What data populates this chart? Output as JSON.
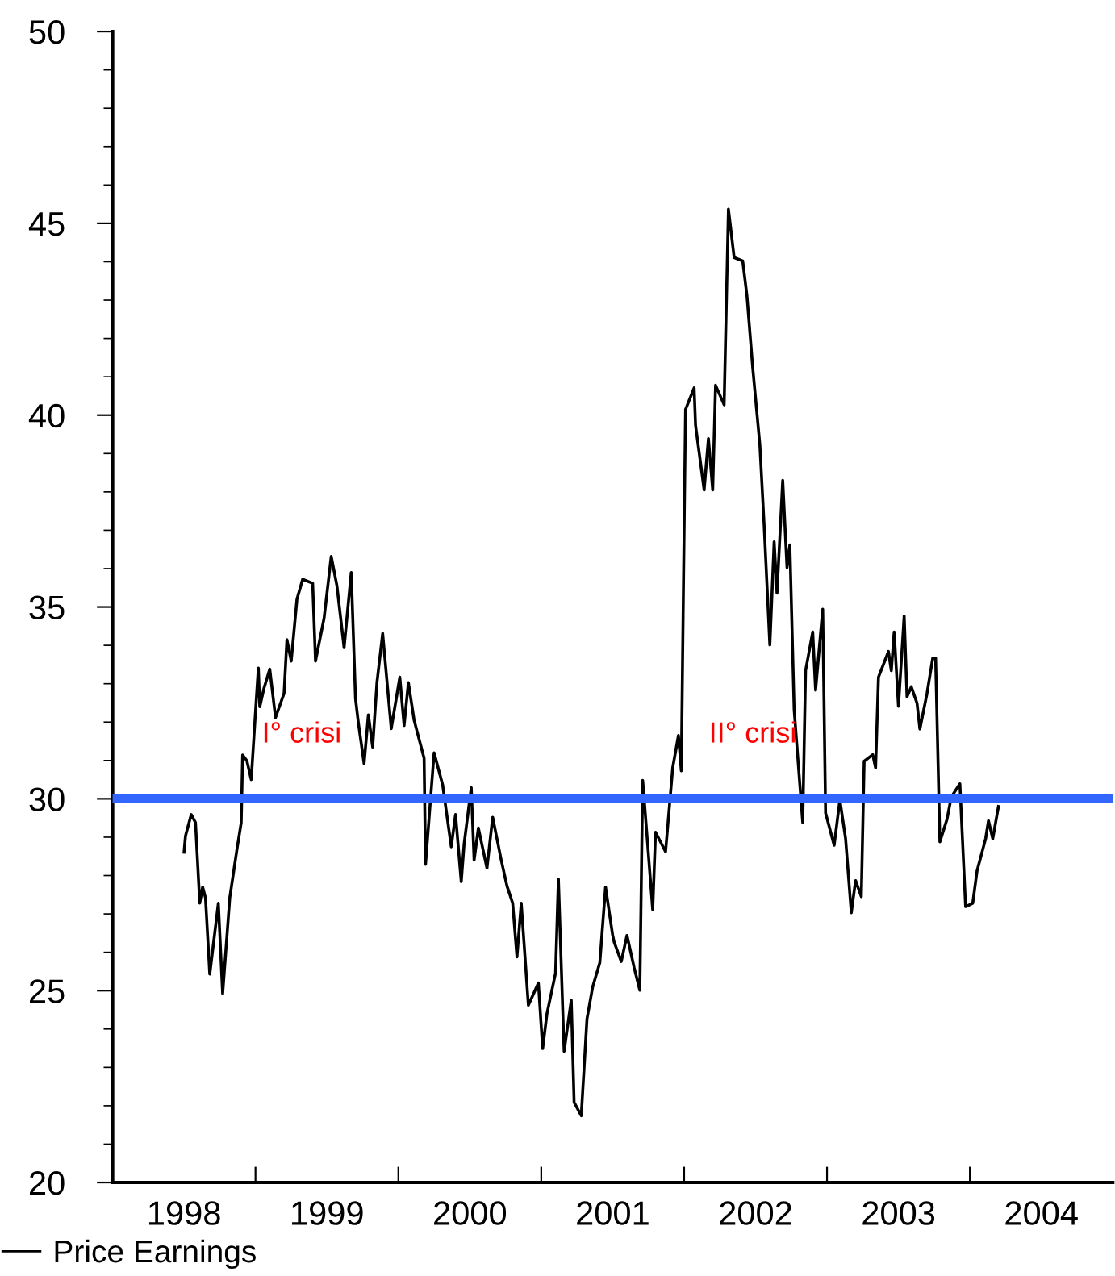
{
  "chart_data": {
    "type": "line",
    "x": [
      1998.5,
      1998.51,
      1998.55,
      1998.58,
      1998.61,
      1998.63,
      1998.65,
      1998.68,
      1998.74,
      1998.77,
      1998.82,
      1998.87,
      1998.9,
      1998.91,
      1998.94,
      1998.97,
      1999.0,
      1999.02,
      1999.03,
      1999.06,
      1999.1,
      1999.14,
      1999.2,
      1999.22,
      1999.25,
      1999.29,
      1999.33,
      1999.4,
      1999.42,
      1999.48,
      1999.53,
      1999.57,
      1999.62,
      1999.67,
      1999.7,
      1999.72,
      1999.76,
      1999.79,
      1999.82,
      1999.85,
      1999.89,
      1999.95,
      2000.01,
      2000.04,
      2000.07,
      2000.11,
      2000.18,
      2000.19,
      2000.25,
      2000.31,
      2000.37,
      2000.4,
      2000.44,
      2000.46,
      2000.51,
      2000.53,
      2000.56,
      2000.62,
      2000.66,
      2000.72,
      2000.76,
      2000.8,
      2000.83,
      2000.86,
      2000.91,
      2000.98,
      2001.01,
      2001.04,
      2001.1,
      2001.12,
      2001.16,
      2001.21,
      2001.23,
      2001.28,
      2001.32,
      2001.36,
      2001.41,
      2001.45,
      2001.5,
      2001.51,
      2001.56,
      2001.6,
      2001.65,
      2001.69,
      2001.71,
      2001.78,
      2001.8,
      2001.87,
      2001.92,
      2001.96,
      2001.98,
      2002.01,
      2002.07,
      2002.08,
      2002.14,
      2002.17,
      2002.2,
      2002.22,
      2002.28,
      2002.31,
      2002.35,
      2002.41,
      2002.44,
      2002.48,
      2002.53,
      2002.56,
      2002.6,
      2002.63,
      2002.65,
      2002.69,
      2002.72,
      2002.74,
      2002.77,
      2002.83,
      2002.85,
      2002.9,
      2002.92,
      2002.97,
      2002.99,
      2003.05,
      2003.09,
      2003.13,
      2003.17,
      2003.2,
      2003.24,
      2003.26,
      2003.32,
      2003.34,
      2003.36,
      2003.43,
      2003.45,
      2003.47,
      2003.5,
      2003.54,
      2003.56,
      2003.59,
      2003.63,
      2003.65,
      2003.7,
      2003.74,
      2003.76,
      2003.79,
      2003.84,
      2003.87,
      2003.93,
      2003.97,
      2004.02,
      2004.05,
      2004.11,
      2004.13,
      2004.16,
      2004.2
    ],
    "series": [
      {
        "name": "Price Earnings",
        "color": "#000000",
        "values": [
          28.61,
          29.03,
          29.59,
          29.38,
          27.28,
          27.7,
          27.42,
          25.43,
          27.28,
          24.92,
          27.42,
          28.68,
          29.38,
          31.14,
          30.99,
          30.5,
          32.26,
          33.41,
          32.4,
          32.89,
          33.38,
          32.12,
          32.75,
          34.15,
          33.59,
          35.2,
          35.72,
          35.62,
          33.59,
          34.71,
          36.32,
          35.55,
          33.94,
          35.9,
          32.61,
          31.98,
          30.92,
          32.19,
          31.35,
          33.03,
          34.31,
          31.83,
          33.17,
          31.91,
          33.03,
          32.05,
          31.06,
          28.29,
          31.2,
          30.36,
          28.75,
          29.59,
          27.84,
          28.82,
          30.29,
          28.4,
          29.24,
          28.19,
          29.52,
          28.4,
          27.73,
          27.28,
          25.88,
          27.28,
          24.62,
          25.2,
          23.49,
          24.4,
          25.46,
          27.91,
          23.42,
          24.75,
          22.09,
          21.74,
          24.26,
          25.1,
          25.73,
          27.7,
          26.44,
          26.27,
          25.76,
          26.44,
          25.6,
          25.01,
          30.48,
          27.11,
          29.13,
          28.62,
          30.81,
          31.65,
          30.73,
          40.15,
          40.71,
          39.73,
          38.05,
          39.39,
          38.05,
          40.78,
          40.27,
          45.37,
          44.11,
          44.02,
          43.1,
          41.24,
          39.23,
          37.12,
          34.01,
          36.7,
          35.36,
          38.3,
          36.03,
          36.62,
          32.33,
          29.38,
          33.34,
          34.35,
          32.83,
          34.94,
          29.63,
          28.79,
          29.97,
          28.96,
          27.03,
          27.87,
          27.45,
          30.98,
          31.15,
          30.81,
          33.17,
          33.84,
          33.34,
          34.35,
          32.41,
          34.77,
          32.66,
          32.92,
          32.49,
          31.82,
          32.75,
          33.67,
          33.67,
          28.88,
          29.47,
          30.05,
          30.39,
          27.19,
          27.28,
          28.12,
          28.96,
          29.43,
          28.96,
          29.8
        ]
      }
    ],
    "xlim": [
      1998,
      2005
    ],
    "xticks": [
      {
        "value": 1998,
        "label": null
      },
      {
        "value": 1999,
        "label": null
      },
      {
        "value": 2000,
        "label": null
      },
      {
        "value": 2001,
        "label": null
      },
      {
        "value": 2002,
        "label": null
      },
      {
        "value": 2003,
        "label": null
      },
      {
        "value": 2004,
        "label": null
      },
      {
        "value": 1998.5,
        "label": "1998"
      },
      {
        "value": 1999.5,
        "label": "1999"
      },
      {
        "value": 2000.5,
        "label": "2000"
      },
      {
        "value": 2001.5,
        "label": "2001"
      },
      {
        "value": 2002.5,
        "label": "2002"
      },
      {
        "value": 2003.5,
        "label": "2003"
      },
      {
        "value": 2004.5,
        "label": "2004"
      }
    ],
    "ylim": [
      20,
      50
    ],
    "yticks": [
      20,
      25,
      30,
      35,
      40,
      45,
      50
    ],
    "ref_lines": [
      {
        "axis": "y",
        "value": 30,
        "color": "#3366ff"
      }
    ],
    "annotations": [
      "I° crisi",
      "II° crisi"
    ],
    "legend": "bottom left",
    "line_style": "solid",
    "marker": "none"
  }
}
